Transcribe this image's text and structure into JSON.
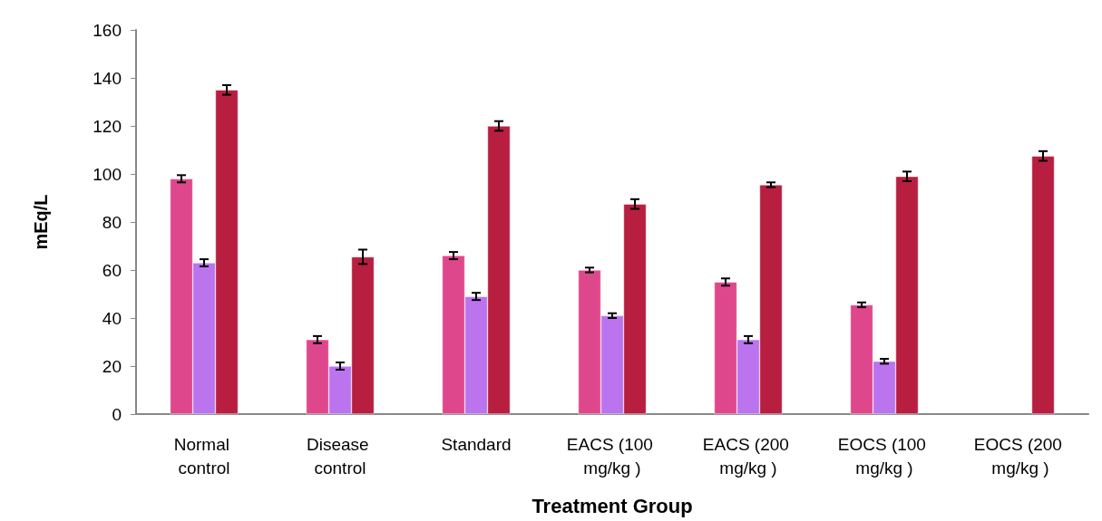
{
  "chart_data": {
    "type": "bar",
    "xlabel": "Treatment Group",
    "ylabel": "mEq/L",
    "categories": [
      "Normal control",
      "Disease control",
      "Standard",
      "EACS (100 mg/kg )",
      "EACS (200 mg/kg )",
      "EOCS (100 mg/kg )",
      "EOCS (200 mg/kg )"
    ],
    "series": [
      {
        "color": "#df478c",
        "values": [
          98,
          31,
          66,
          60,
          55,
          45.5,
          null
        ],
        "errors": [
          1.5,
          1.5,
          1.5,
          1,
          1.5,
          1,
          null
        ]
      },
      {
        "color": "#bb73ee",
        "values": [
          63,
          20,
          49,
          41,
          31,
          22,
          null
        ],
        "errors": [
          1.5,
          1.5,
          1.5,
          1,
          1.5,
          1,
          null
        ]
      },
      {
        "color": "#b81e40",
        "values": [
          135,
          65.5,
          120,
          87.5,
          95.5,
          99,
          107.5
        ],
        "errors": [
          2,
          3,
          2,
          2,
          1,
          2,
          2
        ]
      }
    ],
    "ylim": [
      0,
      160
    ],
    "yticks": [
      0,
      20,
      40,
      60,
      80,
      100,
      120,
      140,
      160
    ],
    "grid": false
  }
}
